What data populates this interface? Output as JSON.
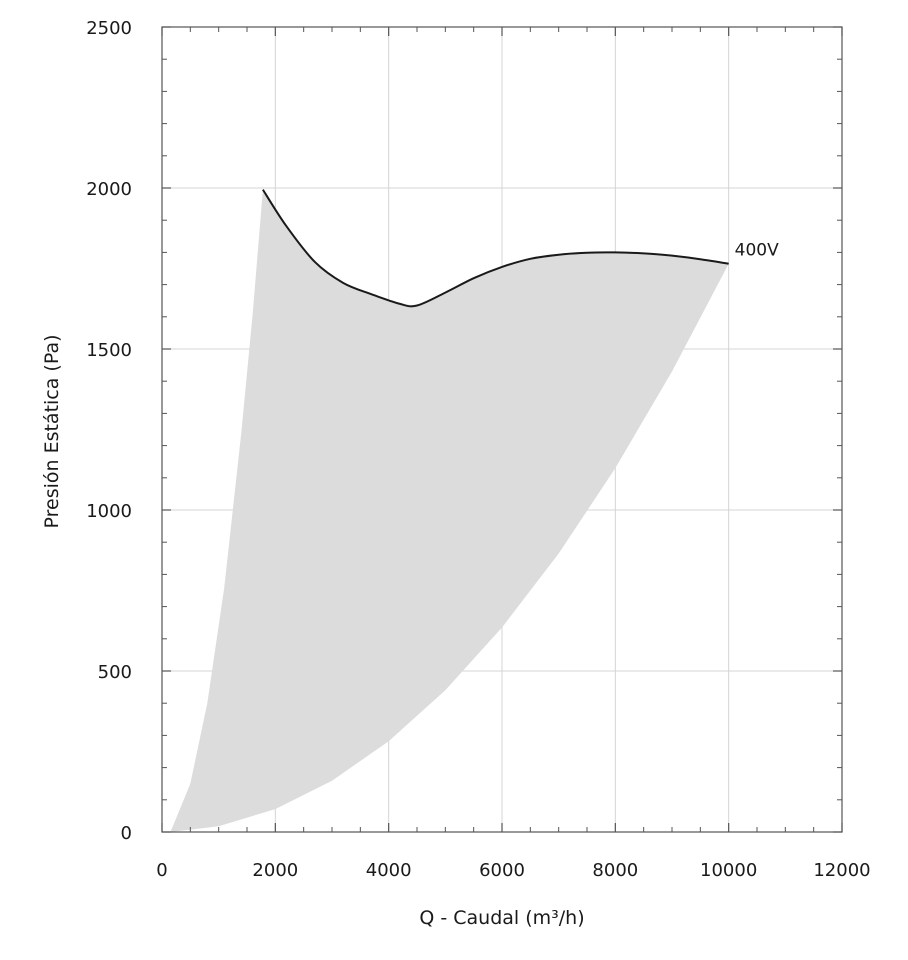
{
  "chart_data": {
    "type": "area",
    "xlabel": "Q - Caudal (m³/h)",
    "ylabel": "Presión Estática (Pa)",
    "xlim": [
      0,
      12000
    ],
    "ylim": [
      0,
      2500
    ],
    "x_ticks": [
      "0",
      "2000",
      "4000",
      "6000",
      "8000",
      "10000",
      "12000"
    ],
    "y_ticks": [
      "0",
      "500",
      "1000",
      "1500",
      "2000",
      "2500"
    ],
    "grid": true,
    "fill_color": "#dcdcdc",
    "curve_color": "#1a1a1a",
    "operating_region": {
      "upper_curve": [
        {
          "x": 1780,
          "y": 1995
        },
        {
          "x": 2200,
          "y": 1880
        },
        {
          "x": 2700,
          "y": 1770
        },
        {
          "x": 3200,
          "y": 1705
        },
        {
          "x": 3700,
          "y": 1670
        },
        {
          "x": 4200,
          "y": 1640
        },
        {
          "x": 4500,
          "y": 1635
        },
        {
          "x": 5000,
          "y": 1675
        },
        {
          "x": 5500,
          "y": 1720
        },
        {
          "x": 6000,
          "y": 1755
        },
        {
          "x": 6500,
          "y": 1780
        },
        {
          "x": 7000,
          "y": 1793
        },
        {
          "x": 7500,
          "y": 1799
        },
        {
          "x": 8000,
          "y": 1800
        },
        {
          "x": 8500,
          "y": 1797
        },
        {
          "x": 9000,
          "y": 1790
        },
        {
          "x": 9500,
          "y": 1779
        },
        {
          "x": 10000,
          "y": 1765
        }
      ],
      "right_boundary": [
        {
          "x": 10000,
          "y": 1765
        },
        {
          "x": 9000,
          "y": 1430
        },
        {
          "x": 8000,
          "y": 1130
        },
        {
          "x": 7000,
          "y": 865
        },
        {
          "x": 6000,
          "y": 635
        },
        {
          "x": 5000,
          "y": 440
        },
        {
          "x": 4000,
          "y": 282
        },
        {
          "x": 3000,
          "y": 159
        },
        {
          "x": 2000,
          "y": 71
        },
        {
          "x": 1000,
          "y": 18
        },
        {
          "x": 150,
          "y": 0
        }
      ],
      "left_boundary": [
        {
          "x": 150,
          "y": 0
        },
        {
          "x": 500,
          "y": 150
        },
        {
          "x": 800,
          "y": 400
        },
        {
          "x": 1100,
          "y": 760
        },
        {
          "x": 1400,
          "y": 1240
        },
        {
          "x": 1600,
          "y": 1610
        },
        {
          "x": 1780,
          "y": 1995
        }
      ]
    },
    "annotations": [
      {
        "text": "400V",
        "x": 10000,
        "y": 1765
      }
    ]
  }
}
